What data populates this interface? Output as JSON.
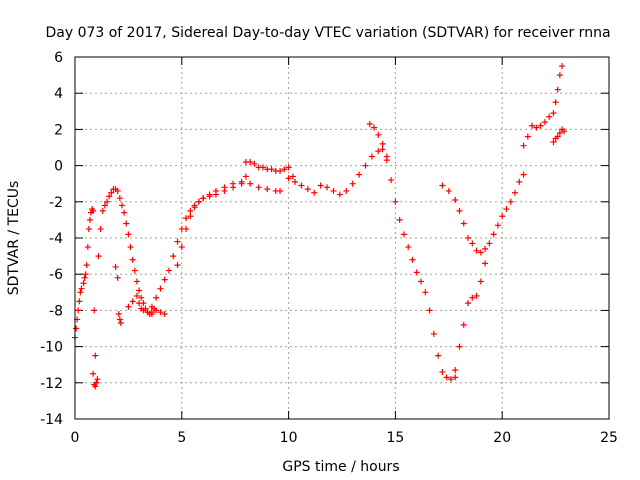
{
  "chart_data": {
    "type": "scatter",
    "title": "Day 073 of 2017, Sidereal Day-to-day VTEC variation (SDTVAR) for receiver rnna",
    "xlabel": "GPS time / hours",
    "ylabel": "SDTVAR / TECUs",
    "xlim": [
      0,
      25
    ],
    "ylim": [
      -14,
      6
    ],
    "xticks": [
      0,
      5,
      10,
      15,
      20,
      25
    ],
    "yticks": [
      -14,
      -12,
      -10,
      -8,
      -6,
      -4,
      -2,
      0,
      2,
      4,
      6
    ],
    "grid": true,
    "legend": "none",
    "marker": "+",
    "color": "#ff0000",
    "series": [
      {
        "x": [
          0.0,
          0.05,
          0.1,
          0.15,
          0.2,
          0.25,
          0.3
        ],
        "y": [
          -9.5,
          -9.0,
          -8.5,
          -8.0,
          -7.5,
          -7.0,
          -6.8
        ]
      },
      {
        "x": [
          0.4,
          0.45,
          0.5,
          0.55,
          0.6,
          0.65,
          0.7,
          0.75,
          0.8,
          0.85,
          0.9,
          0.95,
          1.0
        ],
        "y": [
          -6.5,
          -6.2,
          -6.0,
          -5.5,
          -4.5,
          -3.5,
          -3.0,
          -2.6,
          -2.4,
          -2.5,
          -8.0,
          -10.5,
          -12.0
        ]
      },
      {
        "x": [
          0.85,
          0.9,
          0.95,
          1.0,
          1.05
        ],
        "y": [
          -11.5,
          -12.1,
          -12.2,
          -12.0,
          -11.8
        ]
      },
      {
        "x": [
          1.1,
          1.2,
          1.3,
          1.4,
          1.5,
          1.6,
          1.7,
          1.8,
          1.9,
          2.0,
          2.1,
          2.2,
          2.3,
          2.4,
          2.5,
          2.6,
          2.7,
          2.8,
          2.9,
          3.0,
          3.1,
          3.2,
          3.3,
          3.4,
          3.5,
          3.6,
          3.7
        ],
        "y": [
          -5.0,
          -3.5,
          -2.5,
          -2.2,
          -2.0,
          -1.7,
          -1.5,
          -1.3,
          -1.3,
          -1.4,
          -1.8,
          -2.2,
          -2.6,
          -3.2,
          -3.8,
          -4.5,
          -5.2,
          -5.8,
          -6.4,
          -6.9,
          -7.3,
          -7.6,
          -7.9,
          -8.1,
          -8.2,
          -8.1,
          -7.9
        ]
      },
      {
        "x": [
          1.9,
          2.0,
          2.05,
          2.1,
          2.15
        ],
        "y": [
          -5.6,
          -6.2,
          -8.2,
          -8.5,
          -8.7
        ]
      },
      {
        "x": [
          2.5,
          2.7,
          2.9,
          3.0,
          3.1,
          3.2,
          3.4,
          3.6,
          3.8,
          4.0,
          4.2
        ],
        "y": [
          -7.8,
          -7.5,
          -7.2,
          -7.6,
          -7.9,
          -8.0,
          -8.1,
          -8.2,
          -8.0,
          -8.1,
          -8.2
        ]
      },
      {
        "x": [
          3.6,
          3.8,
          4.0,
          4.2,
          4.4,
          4.6,
          4.8,
          5.0,
          5.2,
          5.4,
          5.6,
          5.8,
          6.0,
          6.3,
          6.6,
          7.0,
          7.4,
          7.8,
          8.2,
          8.6,
          9.0,
          9.4,
          9.6
        ],
        "y": [
          -7.8,
          -7.3,
          -6.8,
          -6.3,
          -5.8,
          -5.0,
          -4.2,
          -3.5,
          -2.9,
          -2.5,
          -2.2,
          -2.0,
          -1.8,
          -1.6,
          -1.4,
          -1.2,
          -1.0,
          -0.9,
          -1.0,
          -1.2,
          -1.3,
          -1.4,
          -1.4
        ]
      },
      {
        "x": [
          4.8,
          5.0,
          5.2,
          5.4,
          5.6,
          5.8,
          6.0,
          6.3,
          6.6,
          7.0,
          7.4,
          7.8,
          8.0
        ],
        "y": [
          -5.5,
          -4.5,
          -3.5,
          -2.8,
          -2.3,
          -2.0,
          -1.8,
          -1.7,
          -1.6,
          -1.4,
          -1.2,
          -1.0,
          -0.6
        ]
      },
      {
        "x": [
          8.0,
          8.2,
          8.4,
          8.6,
          8.8,
          9.0,
          9.2,
          9.4,
          9.6,
          9.8,
          10.0,
          10.2
        ],
        "y": [
          0.2,
          0.2,
          0.1,
          -0.1,
          -0.1,
          -0.2,
          -0.2,
          -0.3,
          -0.3,
          -0.2,
          -0.1,
          -0.6
        ]
      },
      {
        "x": [
          10.0,
          10.3,
          10.6,
          10.9,
          11.2,
          11.5,
          11.8,
          12.1,
          12.4,
          12.7,
          13.0,
          13.3,
          13.6,
          13.9,
          14.2,
          14.4,
          14.6
        ],
        "y": [
          -0.7,
          -0.9,
          -1.1,
          -1.3,
          -1.5,
          -1.1,
          -1.2,
          -1.4,
          -1.6,
          -1.4,
          -1.0,
          -0.5,
          0.0,
          0.5,
          0.8,
          0.9,
          0.5
        ]
      },
      {
        "x": [
          13.8,
          14.0,
          14.2,
          14.4,
          14.6,
          14.8,
          15.0,
          15.2,
          15.4,
          15.6,
          15.8,
          16.0,
          16.2,
          16.4,
          16.6,
          16.8,
          17.0,
          17.2,
          17.4,
          17.6,
          17.8
        ],
        "y": [
          2.3,
          2.1,
          1.7,
          1.2,
          0.3,
          -0.8,
          -2.0,
          -3.0,
          -3.8,
          -4.5,
          -5.2,
          -5.9,
          -6.4,
          -7.0,
          -8.0,
          -9.3,
          -10.5,
          -11.4,
          -11.7,
          -11.8,
          -11.7
        ]
      },
      {
        "x": [
          17.8,
          18.0,
          18.2,
          18.4,
          18.6,
          18.8,
          19.0,
          19.2
        ],
        "y": [
          -11.3,
          -10.0,
          -8.8,
          -7.6,
          -7.3,
          -7.2,
          -6.4,
          -5.4
        ]
      },
      {
        "x": [
          17.2,
          17.5,
          17.8,
          18.0,
          18.2,
          18.4,
          18.6,
          18.8,
          19.0,
          19.2,
          19.4,
          19.6,
          19.8,
          20.0,
          20.2,
          20.4,
          20.6,
          20.8,
          21.0
        ],
        "y": [
          -1.1,
          -1.4,
          -1.9,
          -2.5,
          -3.2,
          -4.0,
          -4.3,
          -4.7,
          -4.8,
          -4.6,
          -4.3,
          -3.8,
          -3.3,
          -2.8,
          -2.4,
          -2.0,
          -1.5,
          -0.9,
          -0.5
        ]
      },
      {
        "x": [
          21.0,
          21.2,
          21.4,
          21.6,
          21.8,
          22.0,
          22.2,
          22.4,
          22.5,
          22.6,
          22.7,
          22.8
        ],
        "y": [
          1.1,
          1.6,
          2.2,
          2.1,
          2.2,
          2.4,
          2.7,
          2.9,
          3.5,
          4.2,
          5.0,
          5.5
        ]
      },
      {
        "x": [
          22.4,
          22.5,
          22.6,
          22.7,
          22.8,
          22.9
        ],
        "y": [
          1.3,
          1.5,
          1.6,
          1.8,
          2.0,
          1.9
        ]
      }
    ]
  }
}
